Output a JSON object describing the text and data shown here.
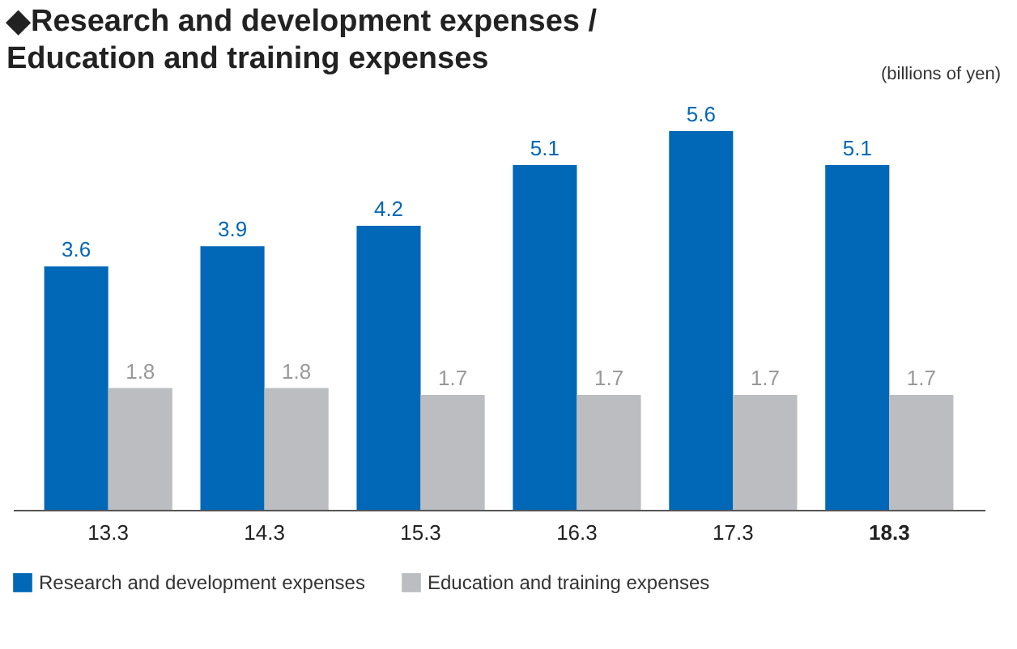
{
  "chart_data": {
    "type": "bar",
    "title": "◆Research and development expenses / Education and training expenses",
    "annotations": [
      "(billions of yen)"
    ],
    "categories": [
      "13.3",
      "14.3",
      "15.3",
      "16.3",
      "17.3",
      "18.3"
    ],
    "series": [
      {
        "name": "Research and development expenses",
        "color": "#0068b7",
        "values": [
          3.6,
          3.9,
          4.2,
          5.1,
          5.6,
          5.1
        ]
      },
      {
        "name": "Education and training expenses",
        "color": "#bcbdc0",
        "values": [
          1.8,
          1.8,
          1.7,
          1.7,
          1.7,
          1.7
        ]
      }
    ],
    "data_labels": true,
    "legend": "bottom",
    "grid": false
  }
}
